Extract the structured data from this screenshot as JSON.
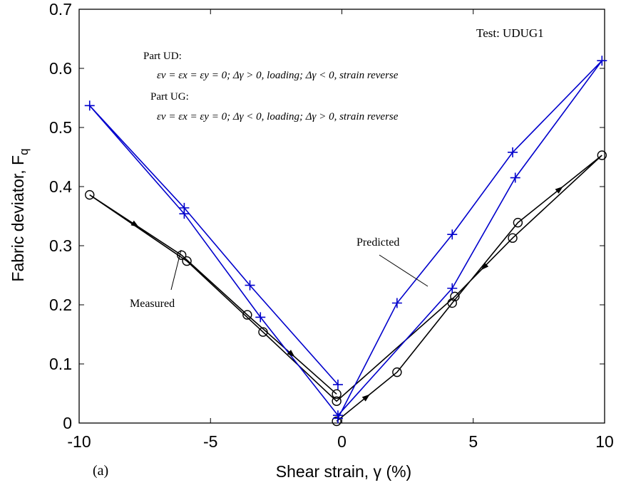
{
  "chart_data": {
    "type": "line",
    "title": "",
    "test_label": "Test: UDUG1",
    "panel_label": "(a)",
    "xlabel": "Shear strain, γ  (%)",
    "ylabel": "Fabric deviator, F",
    "ylabel_sub": "q",
    "xlim": [
      -10,
      10
    ],
    "ylim": [
      0,
      0.7
    ],
    "x_ticks": [
      -10,
      -5,
      0,
      5,
      10
    ],
    "x_tick_labels": [
      "-10",
      "-5",
      "0",
      "5",
      "10"
    ],
    "y_ticks": [
      0,
      0.1,
      0.2,
      0.3,
      0.4,
      0.5,
      0.6,
      0.7
    ],
    "y_tick_labels": [
      "0",
      "0.1",
      "0.2",
      "0.3",
      "0.4",
      "0.5",
      "0.6",
      "0.7"
    ],
    "grid": false,
    "annotations": {
      "part_ud_title": "Part UD:",
      "part_ud_eq": "εv = εx = εy = 0; Δγ > 0, loading; Δγ < 0, strain reverse",
      "part_ug_title": "Part UG:",
      "part_ug_eq": "εv = εx = εy = 0; Δγ < 0, loading; Δγ > 0, strain reverse",
      "measured_label": "Measured",
      "predicted_label": "Predicted"
    },
    "series": [
      {
        "name": "Measured",
        "color": "#000000",
        "marker": "circle",
        "points": [
          {
            "x": -0.2,
            "y": 0.003
          },
          {
            "x": 2.1,
            "y": 0.086
          },
          {
            "x": 4.2,
            "y": 0.203
          },
          {
            "x": 6.7,
            "y": 0.339
          },
          {
            "x": 9.9,
            "y": 0.453
          },
          {
            "x": 6.5,
            "y": 0.313
          },
          {
            "x": 4.3,
            "y": 0.214
          },
          {
            "x": -0.2,
            "y": 0.037
          },
          {
            "x": -3.0,
            "y": 0.154
          },
          {
            "x": -5.9,
            "y": 0.274
          },
          {
            "x": -9.6,
            "y": 0.386
          },
          {
            "x": -6.1,
            "y": 0.284
          },
          {
            "x": -3.6,
            "y": 0.183
          },
          {
            "x": -0.2,
            "y": 0.049
          }
        ]
      },
      {
        "name": "Predicted",
        "color": "#0000cc",
        "marker": "plus",
        "points": [
          {
            "x": -0.15,
            "y": 0.008
          },
          {
            "x": 2.1,
            "y": 0.203
          },
          {
            "x": 4.2,
            "y": 0.319
          },
          {
            "x": 6.5,
            "y": 0.458
          },
          {
            "x": 9.9,
            "y": 0.613
          },
          {
            "x": 6.6,
            "y": 0.415
          },
          {
            "x": 4.2,
            "y": 0.228
          },
          {
            "x": -0.15,
            "y": 0.013
          },
          {
            "x": -3.1,
            "y": 0.179
          },
          {
            "x": -6.0,
            "y": 0.354
          },
          {
            "x": -9.6,
            "y": 0.537
          },
          {
            "x": -6.0,
            "y": 0.364
          },
          {
            "x": -3.5,
            "y": 0.233
          },
          {
            "x": -0.15,
            "y": 0.065
          }
        ]
      }
    ]
  }
}
